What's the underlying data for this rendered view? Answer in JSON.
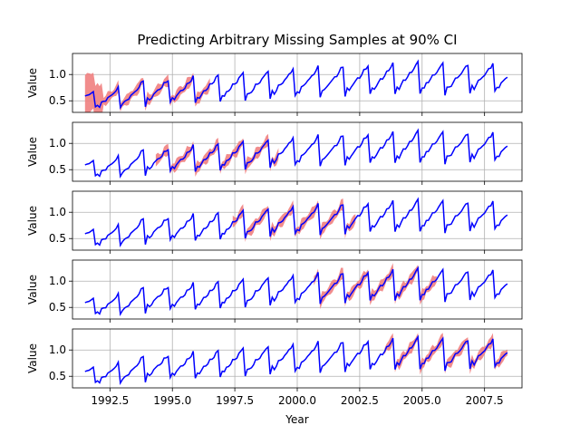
{
  "chart_data": {
    "type": "line",
    "title": "Predicting Arbitrary Missing Samples at 90% CI",
    "xlabel": "Year",
    "ylabel": "Value",
    "xlim": [
      1991.0,
      2009.0
    ],
    "ylim": [
      0.28,
      1.4
    ],
    "x_ticks": [
      1992.5,
      1995.0,
      1997.5,
      2000.0,
      2002.5,
      2005.0,
      2007.5
    ],
    "x_tick_labels": [
      "1992.5",
      "1995.0",
      "1997.5",
      "2000.0",
      "2002.5",
      "2005.0",
      "2007.5"
    ],
    "y_ticks": [
      0.5,
      1.0
    ],
    "y_tick_labels": [
      "0.5",
      "1.0"
    ],
    "grid": true,
    "line_color": "#0000ff",
    "band_color": "#f08080",
    "series_start": 1991.5,
    "series_end": 2008.42,
    "seasonal_peaks": [
      [
        1992.05,
        0.68
      ],
      [
        1993.05,
        0.76
      ],
      [
        1994.05,
        0.92
      ],
      [
        1995.05,
        0.9
      ],
      [
        1996.05,
        0.97
      ],
      [
        1997.05,
        0.99
      ],
      [
        1998.05,
        1.05
      ],
      [
        1999.05,
        1.08
      ],
      [
        2000.05,
        1.12
      ],
      [
        2001.05,
        1.14
      ],
      [
        2002.05,
        1.16
      ],
      [
        2003.05,
        1.18
      ],
      [
        2004.05,
        1.22
      ],
      [
        2005.05,
        1.25
      ],
      [
        2006.05,
        1.2
      ],
      [
        2007.05,
        1.2
      ],
      [
        2008.05,
        1.21
      ]
    ],
    "seasonal_troughs": [
      [
        1991.5,
        0.41
      ],
      [
        1992.1,
        0.34
      ],
      [
        1993.1,
        0.39
      ],
      [
        1994.1,
        0.42
      ],
      [
        1995.1,
        0.46
      ],
      [
        1996.1,
        0.46
      ],
      [
        1997.1,
        0.5
      ],
      [
        1998.1,
        0.52
      ],
      [
        1999.1,
        0.55
      ],
      [
        2000.1,
        0.57
      ],
      [
        2001.1,
        0.59
      ],
      [
        2002.1,
        0.6
      ],
      [
        2003.1,
        0.62
      ],
      [
        2004.1,
        0.63
      ],
      [
        2005.1,
        0.63
      ],
      [
        2006.1,
        0.63
      ],
      [
        2007.1,
        0.64
      ],
      [
        2008.1,
        0.66
      ]
    ],
    "panels": [
      {
        "ci_interval": [
          1991.5,
          1996.5
        ]
      },
      {
        "ci_interval": [
          1994.3,
          1999.3
        ]
      },
      {
        "ci_interval": [
          1997.4,
          2002.4
        ]
      },
      {
        "ci_interval": [
          2000.6,
          2005.6
        ]
      },
      {
        "ci_interval": [
          2003.5,
          2008.42
        ]
      }
    ]
  }
}
